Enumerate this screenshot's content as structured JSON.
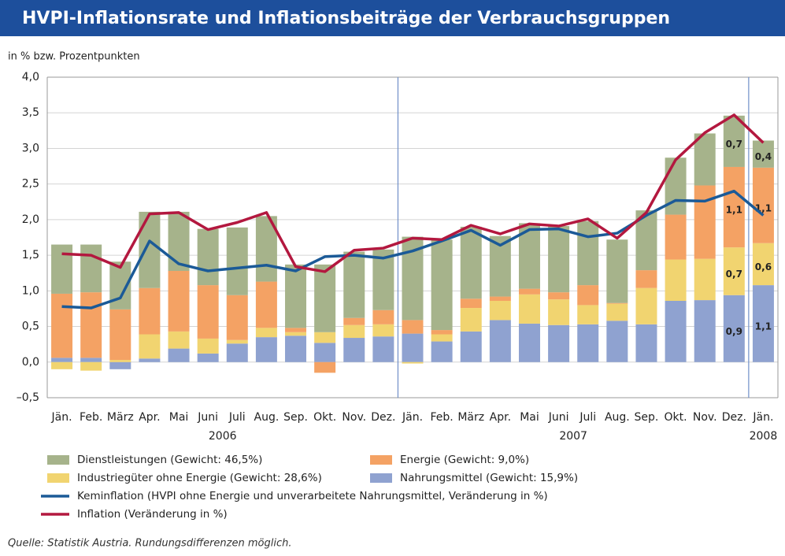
{
  "chart_data": {
    "type": "stacked_bar_line",
    "title": "HVPI-Inflationsrate und Inflationsbeiträge der Verbrauchsgruppen",
    "subtitle": "in % bzw. Prozentpunkten",
    "source": "Quelle: Statistik Austria. Rundungsdifferenzen möglich.",
    "categories": [
      "Jän.",
      "Feb.",
      "März",
      "Apr.",
      "Mai",
      "Juni",
      "Juli",
      "Aug.",
      "Sep.",
      "Okt.",
      "Nov.",
      "Dez.",
      "Jän.",
      "Feb.",
      "März",
      "Apr.",
      "Mai",
      "Juni",
      "Juli",
      "Aug.",
      "Sep.",
      "Okt.",
      "Nov.",
      "Dez.",
      "Jän."
    ],
    "years": [
      "2006",
      "2007",
      "2008"
    ],
    "ylim": [
      -0.5,
      4.0
    ],
    "yticks": [
      {
        "value": -0.5,
        "label": "–0,5"
      },
      {
        "value": 0,
        "label": "0,0"
      },
      {
        "value": 0.5,
        "label": "0,5"
      },
      {
        "value": 1.0,
        "label": "1,0"
      },
      {
        "value": 1.5,
        "label": "1,5"
      },
      {
        "value": 2.0,
        "label": "2,0"
      },
      {
        "value": 2.5,
        "label": "2,5"
      },
      {
        "value": 3.0,
        "label": "3,0"
      },
      {
        "value": 3.5,
        "label": "3,5"
      },
      {
        "value": 4.0,
        "label": "4,0"
      }
    ],
    "grid": true,
    "series": [
      {
        "name": "Nahrungsmittel (Gewicht: 15,9%)",
        "type": "bar",
        "color": "#8fa2d0",
        "values": [
          0.06,
          0.06,
          -0.1,
          0.05,
          0.19,
          0.12,
          0.26,
          0.35,
          0.37,
          0.27,
          0.34,
          0.36,
          0.4,
          0.29,
          0.43,
          0.59,
          0.54,
          0.52,
          0.53,
          0.58,
          0.53,
          0.86,
          0.87,
          0.94,
          1.08
        ],
        "value_labels": [
          null,
          null,
          null,
          null,
          null,
          null,
          null,
          null,
          null,
          null,
          null,
          null,
          null,
          null,
          null,
          null,
          null,
          null,
          null,
          null,
          null,
          null,
          null,
          "0,9",
          "1,1"
        ]
      },
      {
        "name": "Industriegüter ohne Energie (Gewicht: 28,6%)",
        "type": "bar",
        "color": "#f1d470",
        "values": [
          -0.1,
          -0.12,
          0.03,
          0.34,
          0.24,
          0.21,
          0.05,
          0.13,
          0.05,
          0.15,
          0.18,
          0.17,
          -0.02,
          0.1,
          0.33,
          0.27,
          0.41,
          0.36,
          0.27,
          0.24,
          0.51,
          0.58,
          0.58,
          0.67,
          0.59
        ],
        "value_labels": [
          null,
          null,
          null,
          null,
          null,
          null,
          null,
          null,
          null,
          null,
          null,
          null,
          null,
          null,
          null,
          null,
          null,
          null,
          null,
          null,
          null,
          null,
          null,
          "0,7",
          "0,6"
        ]
      },
      {
        "name": "Energie (Gewicht: 9,0%)",
        "type": "bar",
        "color": "#f4a264",
        "values": [
          0.9,
          0.92,
          0.71,
          0.65,
          0.85,
          0.75,
          0.63,
          0.65,
          0.06,
          -0.15,
          0.1,
          0.2,
          0.19,
          0.06,
          0.13,
          0.06,
          0.08,
          0.1,
          0.28,
          0.01,
          0.25,
          0.63,
          1.03,
          1.13,
          1.06
        ],
        "value_labels": [
          null,
          null,
          null,
          null,
          null,
          null,
          null,
          null,
          null,
          null,
          null,
          null,
          null,
          null,
          null,
          null,
          null,
          null,
          null,
          null,
          null,
          null,
          null,
          "1,1",
          "1,1"
        ]
      },
      {
        "name": "Dienstleistungen (Gewicht: 46,5%)",
        "type": "bar",
        "color": "#a6b38b",
        "values": [
          0.69,
          0.67,
          0.67,
          1.07,
          0.83,
          0.79,
          0.95,
          0.92,
          0.89,
          0.95,
          0.93,
          0.85,
          1.17,
          1.27,
          1.01,
          0.85,
          0.92,
          0.93,
          0.9,
          0.89,
          0.84,
          0.8,
          0.73,
          0.72,
          0.38
        ],
        "value_labels": [
          null,
          null,
          null,
          null,
          null,
          null,
          null,
          null,
          null,
          null,
          null,
          null,
          null,
          null,
          null,
          null,
          null,
          null,
          null,
          null,
          null,
          null,
          null,
          "0,7",
          "0,4"
        ]
      },
      {
        "name": "Keminflation (HVPI ohne Energie und unverarbeitete Nahrungsmittel, Veränderung in %)",
        "type": "line",
        "color": "#1b5a97",
        "values": [
          0.78,
          0.76,
          0.9,
          1.7,
          1.38,
          1.28,
          1.32,
          1.36,
          1.28,
          1.48,
          1.5,
          1.46,
          1.56,
          1.7,
          1.85,
          1.64,
          1.86,
          1.87,
          1.76,
          1.81,
          2.06,
          2.27,
          2.26,
          2.4,
          2.06
        ]
      },
      {
        "name": "Inflation (Veränderung in %)",
        "type": "line",
        "color": "#b3183f",
        "values": [
          1.52,
          1.5,
          1.33,
          2.08,
          2.1,
          1.86,
          1.96,
          2.1,
          1.34,
          1.27,
          1.57,
          1.6,
          1.74,
          1.72,
          1.92,
          1.8,
          1.94,
          1.91,
          2.01,
          1.74,
          2.1,
          2.84,
          3.22,
          3.47,
          3.08
        ]
      }
    ]
  }
}
